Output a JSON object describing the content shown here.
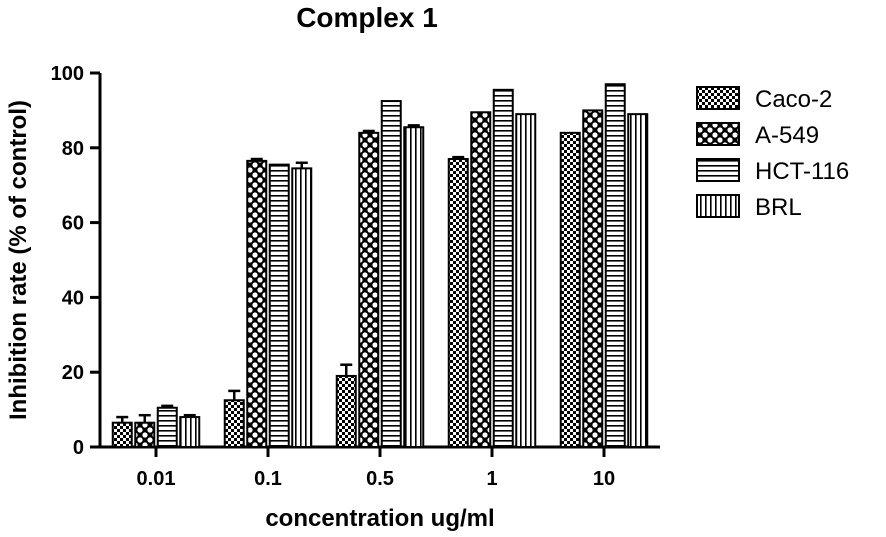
{
  "chart_data": {
    "type": "bar",
    "title": "Complex 1",
    "xlabel": "concentration  ug/ml",
    "ylabel": "Inhibition rate (% of control)",
    "categories": [
      "0.01",
      "0.1",
      "0.5",
      "1",
      "10"
    ],
    "ylim": [
      0,
      100
    ],
    "yticks": [
      0,
      20,
      40,
      60,
      80,
      100
    ],
    "grid": false,
    "legend_position": "right",
    "series": [
      {
        "name": "Caco-2",
        "values": [
          6.5,
          12.5,
          19,
          77,
          84
        ],
        "errors": [
          1.5,
          2.5,
          3,
          0.5,
          0
        ],
        "pattern": "checker-small"
      },
      {
        "name": "A-549",
        "values": [
          6.5,
          76.5,
          84,
          89.5,
          90
        ],
        "errors": [
          2,
          0.5,
          0.5,
          0,
          0
        ],
        "pattern": "checker-large"
      },
      {
        "name": "HCT-116",
        "values": [
          10.5,
          75.5,
          92.5,
          95.5,
          97
        ],
        "errors": [
          0.5,
          0,
          0,
          0,
          0
        ],
        "pattern": "horizontal-stripes"
      },
      {
        "name": "BRL",
        "values": [
          8,
          74.5,
          85.5,
          89,
          89
        ],
        "errors": [
          0.5,
          1.5,
          0.5,
          0,
          0
        ],
        "pattern": "vertical-stripes"
      }
    ]
  }
}
